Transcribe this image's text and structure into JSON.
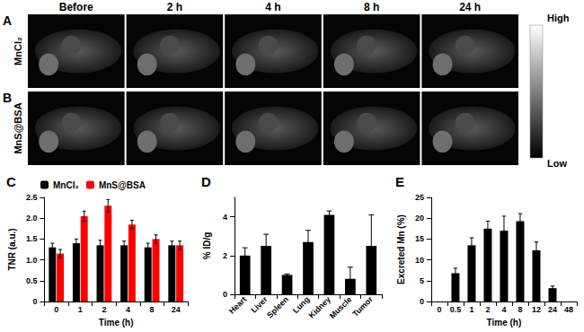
{
  "images": {
    "columns": [
      "Before",
      "2 h",
      "4 h",
      "8 h",
      "24 h"
    ],
    "rows": [
      {
        "panel": "A",
        "label": "MnCl₂"
      },
      {
        "panel": "B",
        "label": "MnS@BSA"
      }
    ],
    "color_bar": {
      "high": "High",
      "low": "Low"
    }
  },
  "chart_data": [
    {
      "type": "bar",
      "title": "C",
      "x_label": "Time (h)",
      "y_label": "TNR (a.u.)",
      "categories": [
        "0",
        "1",
        "2",
        "4",
        "8",
        "24"
      ],
      "series": [
        {
          "name": "MnCl₂",
          "color": "#000000",
          "values": [
            1.3,
            1.4,
            1.35,
            1.35,
            1.3,
            1.35
          ],
          "errors": [
            0.1,
            0.1,
            0.12,
            0.1,
            0.1,
            0.1
          ]
        },
        {
          "name": "MnS@BSA",
          "color": "#ff0000",
          "values": [
            1.15,
            2.05,
            2.3,
            1.85,
            1.5,
            1.35
          ],
          "errors": [
            0.1,
            0.12,
            0.15,
            0.1,
            0.1,
            0.1
          ]
        }
      ],
      "ylim": [
        0,
        2.5
      ],
      "yticks": [
        0,
        0.5,
        {
          "value": 1,
          "label": "1.0"
        },
        1.5,
        {
          "value": 2,
          "label": "2.0"
        },
        2.5
      ],
      "legend": "top",
      "grid": false
    },
    {
      "type": "bar",
      "title": "D",
      "y_label": "% ID/g",
      "categories": [
        "Heart",
        "Liver",
        "Spleen",
        "Lung",
        "Kidney",
        "Muscle",
        "Tumor"
      ],
      "values": [
        2.0,
        2.5,
        1.0,
        2.7,
        4.1,
        0.8,
        2.5
      ],
      "errors": [
        0.4,
        0.6,
        0.05,
        0.6,
        0.2,
        0.6,
        1.6
      ],
      "color": "#000000",
      "ylim": [
        0,
        5
      ],
      "yticks": [
        0,
        2,
        4
      ],
      "grid": false
    },
    {
      "type": "bar",
      "title": "E",
      "x_label": "Time (h)",
      "y_label": "Excreted Mn (%)",
      "categories": [
        "0",
        "0.5",
        "1",
        "2",
        "4",
        "8",
        "12",
        "24",
        "48"
      ],
      "values": [
        0,
        6.8,
        13.5,
        17.5,
        17,
        19.3,
        12.3,
        3.2,
        0
      ],
      "errors": [
        0,
        1.2,
        1.8,
        1.8,
        3.5,
        1.8,
        2,
        0.5,
        0
      ],
      "color": "#000000",
      "ylim": [
        0,
        25
      ],
      "yticks": [
        0,
        5,
        10,
        15,
        20,
        25
      ],
      "grid": false
    }
  ]
}
